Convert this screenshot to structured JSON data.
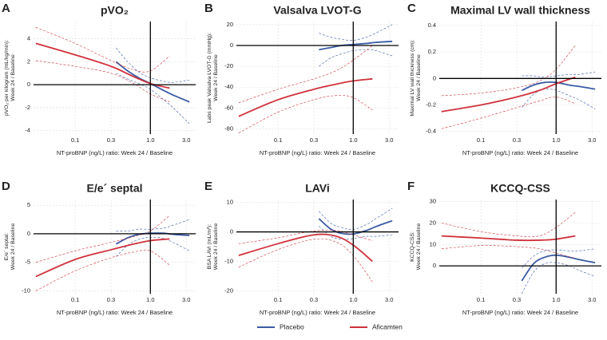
{
  "chart_data": [
    {
      "type": "line",
      "panel": "A",
      "title": "pVO₂",
      "ylabel": [
        "pVO₂ per kilogram (mL/kg/min):",
        "Week 24 / Baseline"
      ],
      "xlabel": "NT-proBNP (ng/L) ratio: Week 24 / Baseline",
      "xscale": "log",
      "xlim": [
        0.028,
        4.0
      ],
      "xticks": [
        0.1,
        0.3,
        {
          "value": 1,
          "label": "1.0"
        },
        {
          "value": 3,
          "label": "3.0"
        }
      ],
      "ylim": [
        -4.3,
        5.5
      ],
      "yticks": [
        -4,
        -2,
        0,
        2,
        4
      ],
      "hline": 0,
      "vline": 1,
      "grid": true,
      "series": [
        {
          "name": "Placebo",
          "color": "#3b5ba5",
          "x": [
            0.35,
            0.5,
            0.7,
            1.0,
            1.5,
            2,
            3.3
          ],
          "values": [
            2,
            1.2,
            0.6,
            0.1,
            -0.5,
            -0.9,
            -1.5
          ],
          "lower": [
            1.0,
            0.5,
            0.1,
            -0.4,
            -1.3,
            -2,
            -3.4
          ],
          "upper": [
            3.2,
            2,
            1.1,
            0.6,
            0.3,
            0.2,
            0.4
          ]
        },
        {
          "name": "Aficamten",
          "color": "#d0313c",
          "x": [
            0.03,
            0.1,
            0.3,
            0.6,
            1.0,
            1.8
          ],
          "values": [
            3.6,
            2.6,
            1.6,
            0.7,
            0.1,
            -0.3
          ],
          "lower": [
            2.1,
            1.6,
            1.0,
            0.1,
            -0.8,
            -1.5
          ],
          "upper": [
            5,
            3.6,
            2.1,
            1.3,
            1.2,
            2.5
          ]
        }
      ]
    },
    {
      "type": "line",
      "panel": "B",
      "title": "Valsalva LVOT-G",
      "ylabel": [
        "Labs peak Valsalva LVOT-G (mmHg):",
        "Week 24 / Baseline"
      ],
      "xlabel": "NT-proBNP (ng/L) ratio: Week 24 / Baseline",
      "xscale": "log",
      "xlim": [
        0.028,
        4.0
      ],
      "xticks": [
        0.1,
        0.3,
        {
          "value": 1,
          "label": "1.0"
        },
        {
          "value": 3,
          "label": "3.0"
        }
      ],
      "ylim": [
        -85,
        23
      ],
      "yticks": [
        -80,
        -60,
        -40,
        -20,
        0,
        20
      ],
      "hline": 0,
      "vline": 1,
      "grid": true,
      "series": [
        {
          "name": "Placebo",
          "color": "#3b5ba5",
          "x": [
            0.35,
            0.5,
            0.7,
            1.0,
            1.5,
            2,
            3.3
          ],
          "values": [
            -4,
            -2,
            0,
            1,
            2,
            3,
            4
          ],
          "lower": [
            -20,
            -12,
            -8,
            -5,
            -4,
            -5,
            -10
          ],
          "upper": [
            12,
            8,
            6,
            5,
            8,
            12,
            20
          ]
        },
        {
          "name": "Aficamten",
          "color": "#d0313c",
          "x": [
            0.03,
            0.1,
            0.3,
            0.6,
            1.0,
            1.8
          ],
          "values": [
            -68,
            -52,
            -42,
            -37,
            -34,
            -32
          ],
          "lower": [
            -84,
            -64,
            -52,
            -48,
            -50,
            -62
          ],
          "upper": [
            -55,
            -42,
            -32,
            -24,
            -14,
            0
          ]
        }
      ]
    },
    {
      "type": "line",
      "panel": "C",
      "title": "Maximal LV wall thickness",
      "ylabel": [
        "Maximal LV wall thickness (cm):",
        "Week 24 / Baseline"
      ],
      "xlabel": "NT-proBNP (ng/L) ratio: Week 24 / Baseline",
      "xscale": "log",
      "xlim": [
        0.028,
        4.0
      ],
      "xticks": [
        0.1,
        0.3,
        {
          "value": 1,
          "label": "1.0"
        },
        {
          "value": 3,
          "label": "3.0"
        }
      ],
      "ylim": [
        -0.42,
        0.43
      ],
      "yticks": [
        -0.4,
        -0.2,
        0,
        0.2,
        0.4
      ],
      "hline": 0,
      "vline": 1,
      "grid": true,
      "series": [
        {
          "name": "Placebo",
          "color": "#3b5ba5",
          "x": [
            0.35,
            0.5,
            0.7,
            1.0,
            1.5,
            2,
            3.3
          ],
          "values": [
            -0.09,
            -0.05,
            -0.03,
            -0.03,
            -0.05,
            -0.06,
            -0.08
          ],
          "lower": [
            -0.22,
            -0.12,
            -0.08,
            -0.09,
            -0.13,
            -0.16,
            -0.23
          ],
          "upper": [
            0.02,
            0.02,
            0.01,
            0.02,
            0.03,
            0.03,
            0.05
          ]
        },
        {
          "name": "Aficamten",
          "color": "#d0313c",
          "x": [
            0.03,
            0.1,
            0.3,
            0.6,
            1.0,
            1.8
          ],
          "values": [
            -0.25,
            -0.2,
            -0.14,
            -0.09,
            -0.04,
            0.01
          ],
          "lower": [
            -0.38,
            -0.3,
            -0.22,
            -0.17,
            -0.14,
            -0.19
          ],
          "upper": [
            -0.13,
            -0.11,
            -0.07,
            -0.02,
            0.07,
            0.25
          ]
        }
      ]
    },
    {
      "type": "line",
      "panel": "D",
      "title": "E/e´ septal",
      "ylabel": [
        "E/e´ septal:",
        "Week 24 / Baseline"
      ],
      "xlabel": "NT-proBNP (ng/L) ratio: Week 24 / Baseline",
      "xscale": "log",
      "xlim": [
        0.028,
        4.0
      ],
      "xticks": [
        0.1,
        0.3,
        {
          "value": 1,
          "label": "1.0"
        },
        {
          "value": 3,
          "label": "3.0"
        }
      ],
      "ylim": [
        -10.5,
        6
      ],
      "yticks": [
        -10,
        -5,
        0,
        5
      ],
      "hline": 0,
      "vline": 1,
      "grid": true,
      "series": [
        {
          "name": "Placebo",
          "color": "#3b5ba5",
          "x": [
            0.35,
            0.5,
            0.7,
            1.0,
            1.5,
            2,
            3.3
          ],
          "values": [
            -1.8,
            -0.7,
            -0.1,
            0.1,
            0.1,
            -0.1,
            -0.3
          ],
          "lower": [
            -4,
            -2,
            -1,
            -0.6,
            -0.8,
            -1.5,
            -3
          ],
          "upper": [
            0.5,
            0.5,
            0.8,
            0.8,
            1,
            1.5,
            2.5
          ]
        },
        {
          "name": "Aficamten",
          "color": "#d0313c",
          "x": [
            0.03,
            0.1,
            0.3,
            0.6,
            1.0,
            1.8
          ],
          "values": [
            -7.5,
            -4.5,
            -2.8,
            -1.8,
            -1.2,
            -0.9
          ],
          "lower": [
            -10,
            -6.5,
            -4.2,
            -3.2,
            -3,
            -5.5
          ],
          "upper": [
            -5,
            -3,
            -1.5,
            -0.5,
            0.5,
            3.2
          ]
        }
      ]
    },
    {
      "type": "line",
      "panel": "E",
      "title": "LAVi",
      "ylabel": [
        "BSA LAVi (mL/m²):",
        "Week 24 / Baseline"
      ],
      "xlabel": "NT-proBNP (ng/L) ratio: Week 24 / Baseline",
      "xscale": "log",
      "xlim": [
        0.028,
        4.0
      ],
      "xticks": [
        0.1,
        0.3,
        {
          "value": 1,
          "label": "1.0"
        },
        {
          "value": 3,
          "label": "3.0"
        }
      ],
      "ylim": [
        -21,
        11
      ],
      "yticks": [
        -20,
        -10,
        0,
        10
      ],
      "hline": 0,
      "vline": 1,
      "grid": true,
      "series": [
        {
          "name": "Placebo",
          "color": "#3b5ba5",
          "x": [
            0.35,
            0.5,
            0.7,
            1.0,
            1.5,
            2,
            3.3
          ],
          "values": [
            4.5,
            1,
            -0.5,
            -0.7,
            0.5,
            1.8,
            3.8
          ],
          "lower": [
            2,
            -1.5,
            -2.5,
            -2.3,
            -1.5,
            -1.5,
            -1
          ],
          "upper": [
            7,
            3,
            1.5,
            0.8,
            2.5,
            4.5,
            8
          ]
        },
        {
          "name": "Aficamten",
          "color": "#d0313c",
          "x": [
            0.03,
            0.1,
            0.3,
            0.6,
            1.0,
            1.8
          ],
          "values": [
            -8,
            -4,
            -1,
            -1.5,
            -4.5,
            -10
          ],
          "lower": [
            -12,
            -6,
            -2.5,
            -3.5,
            -8,
            -17
          ],
          "upper": [
            -4,
            -2,
            0.3,
            0.5,
            -1,
            -3
          ]
        }
      ]
    },
    {
      "type": "line",
      "panel": "F",
      "title": "KCCQ-CSS",
      "ylabel": [
        "KCCQ-CSS:",
        "Week 24 / Baseline"
      ],
      "xlabel": "NT-proBNP (ng/L) ratio: Week 24 / Baseline",
      "xscale": "log",
      "xlim": [
        0.028,
        4.0
      ],
      "xticks": [
        0.1,
        0.3,
        {
          "value": 1,
          "label": "1.0"
        },
        {
          "value": 3,
          "label": "3.0"
        }
      ],
      "ylim": [
        -13,
        31
      ],
      "yticks": [
        0,
        10,
        20,
        30
      ],
      "hline": 0,
      "vline": 1,
      "grid": true,
      "series": [
        {
          "name": "Placebo",
          "color": "#3b5ba5",
          "x": [
            0.35,
            0.5,
            0.7,
            1.0,
            1.5,
            2,
            3.3
          ],
          "values": [
            -7,
            1,
            4,
            5,
            4,
            3,
            1.5
          ],
          "lower": [
            -13,
            -3,
            1,
            1.5,
            0,
            -2,
            -5
          ],
          "upper": [
            -1,
            4.5,
            7,
            7.5,
            7,
            7,
            8
          ]
        },
        {
          "name": "Aficamten",
          "color": "#d0313c",
          "x": [
            0.03,
            0.1,
            0.3,
            0.6,
            1.0,
            1.8
          ],
          "values": [
            14,
            13,
            12,
            12,
            12.5,
            14
          ],
          "lower": [
            8,
            9.5,
            9,
            8,
            6,
            3.5
          ],
          "upper": [
            20,
            16,
            14,
            14,
            18,
            25
          ]
        }
      ]
    }
  ]
}
